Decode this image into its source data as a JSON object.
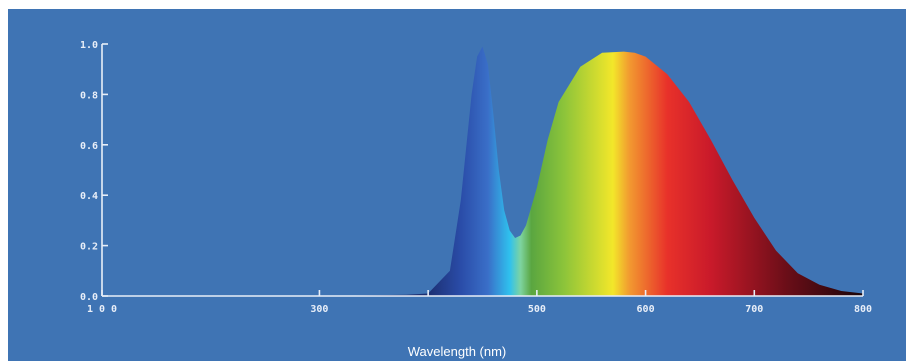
{
  "chart_data": {
    "type": "area",
    "title": "",
    "xlabel": "Wavelength (nm)",
    "ylabel": "",
    "xlim": [
      100,
      800
    ],
    "ylim": [
      0,
      1.0
    ],
    "x_ticks": [
      100,
      300,
      400,
      500,
      600,
      700,
      800
    ],
    "x_tick_labels": [
      "1 0 0",
      "300",
      "",
      "500",
      "600",
      "700",
      "800"
    ],
    "y_ticks": [
      0.0,
      0.2,
      0.4,
      0.6,
      0.8,
      1.0
    ],
    "y_tick_labels": [
      "0.0",
      "0.2",
      "0.4",
      "0.6",
      "0.8",
      "1.0"
    ],
    "grid": false,
    "fill": "visible-spectrum gradient",
    "series": [
      {
        "x": [
          100,
          300,
          380,
          400,
          420,
          430,
          440,
          445,
          450,
          455,
          460,
          465,
          470,
          475,
          480,
          485,
          490,
          500,
          510,
          520,
          540,
          560,
          580,
          590,
          600,
          620,
          640,
          660,
          680,
          700,
          720,
          740,
          760,
          780,
          800
        ],
        "y": [
          0.0,
          0.0,
          0.005,
          0.01,
          0.1,
          0.38,
          0.8,
          0.95,
          0.99,
          0.92,
          0.72,
          0.5,
          0.34,
          0.26,
          0.23,
          0.24,
          0.28,
          0.43,
          0.62,
          0.77,
          0.91,
          0.965,
          0.97,
          0.965,
          0.95,
          0.88,
          0.77,
          0.62,
          0.46,
          0.31,
          0.18,
          0.09,
          0.045,
          0.02,
          0.01
        ]
      }
    ]
  },
  "colors": {
    "background": "#3f74b4",
    "axis": "#e8eef8",
    "spectrum": [
      "#1c2f72",
      "#2a4ca8",
      "#3a6fc8",
      "#2fc1ee",
      "#7ed4a0",
      "#5aa640",
      "#8cc43a",
      "#f3e72a",
      "#f29a30",
      "#e8312a",
      "#c91a2a",
      "#6a0e18",
      "#1a0508"
    ]
  }
}
